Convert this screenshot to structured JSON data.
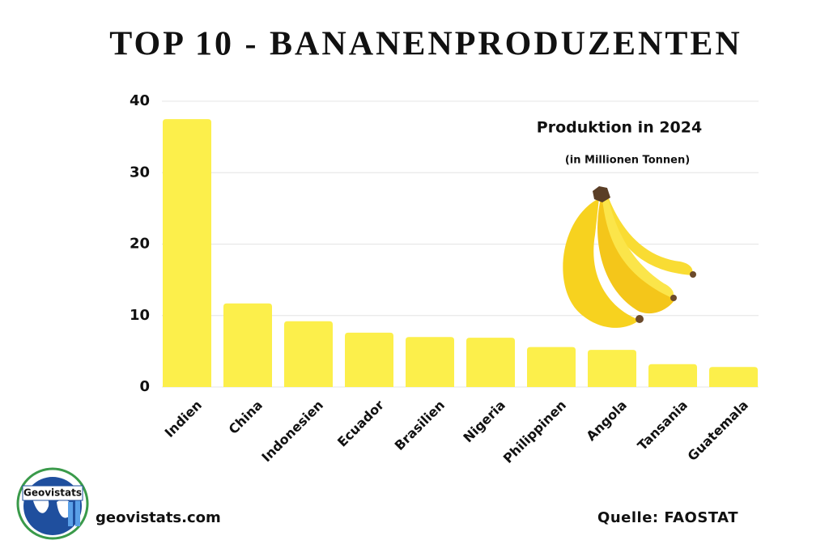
{
  "chart_data": {
    "type": "bar",
    "title": "TOP 10 - BANANENPRODUZENTEN",
    "annotation": "Produktion in 2024",
    "subtitle": "(in Millionen Tonnen)",
    "categories": [
      "Indien",
      "China",
      "Indonesien",
      "Ecuador",
      "Brasilien",
      "Nigeria",
      "Philippinen",
      "Angola",
      "Tansania",
      "Guatemala"
    ],
    "values": [
      37.5,
      11.7,
      9.2,
      7.6,
      7.0,
      6.9,
      5.6,
      5.2,
      3.2,
      2.8
    ],
    "color": "#fcef4b",
    "ylim": [
      0,
      40
    ],
    "yticks": [
      0,
      10,
      20,
      30,
      40
    ],
    "grid": true
  },
  "footer": {
    "website": "geovistats.com",
    "source": "Quelle: FAOSTAT"
  },
  "logo": {
    "label": "Geovistats"
  }
}
